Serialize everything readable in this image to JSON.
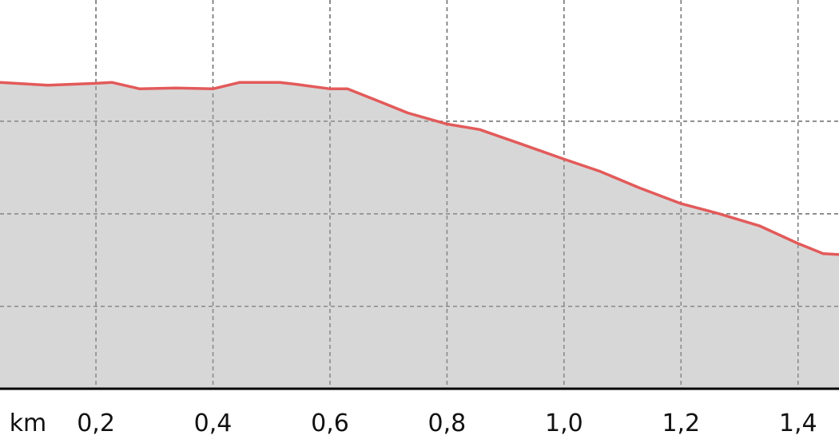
{
  "chart_data": {
    "type": "area",
    "x_label": "km",
    "x": [
      0.036,
      0.118,
      0.2,
      0.227,
      0.275,
      0.337,
      0.4,
      0.446,
      0.514,
      0.541,
      0.6,
      0.63,
      0.678,
      0.733,
      0.8,
      0.856,
      0.924,
      1.0,
      1.061,
      1.129,
      1.2,
      1.266,
      1.334,
      1.4,
      1.443,
      1.47
    ],
    "series": [
      {
        "color": "#e35a5a",
        "values": [
          34.2,
          33.9,
          34.1,
          34.2,
          33.5,
          33.6,
          33.5,
          34.2,
          34.2,
          34.0,
          33.5,
          33.5,
          32.3,
          30.9,
          29.7,
          29.1,
          27.6,
          25.9,
          24.6,
          22.8,
          21.1,
          20.0,
          18.7,
          16.8,
          15.7,
          15.6
        ]
      }
    ],
    "fill_color": "#d3d3d3",
    "xlim": [
      0.036,
      1.47
    ],
    "ylim": [
      1.1,
      43.1
    ],
    "xticks": [
      {
        "value": 0.2,
        "label": "0,2"
      },
      {
        "value": 0.4,
        "label": "0,4"
      },
      {
        "value": 0.6,
        "label": "0,6"
      },
      {
        "value": 0.8,
        "label": "0,8"
      },
      {
        "value": 1.0,
        "label": "1,0"
      },
      {
        "value": 1.2,
        "label": "1,2"
      },
      {
        "value": 1.4,
        "label": "1,4"
      }
    ],
    "yticks": [
      10,
      20,
      30
    ],
    "grid": true
  }
}
